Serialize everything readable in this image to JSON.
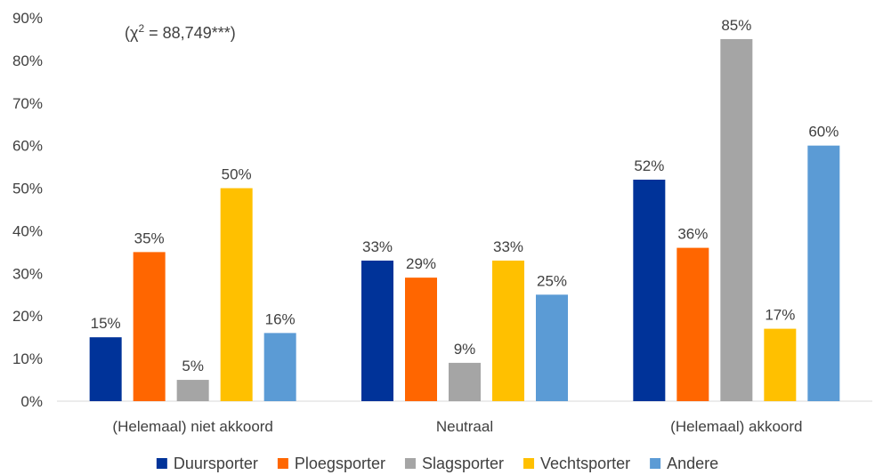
{
  "chart_data": {
    "type": "bar",
    "categories": [
      "(Helemaal) niet akkoord",
      "Neutraal",
      "(Helemaal) akkoord"
    ],
    "series": [
      {
        "name": "Duursporter",
        "color": "#003399",
        "values": [
          15,
          33,
          52
        ]
      },
      {
        "name": "Ploegsporter",
        "color": "#ff6600",
        "values": [
          35,
          29,
          36
        ]
      },
      {
        "name": "Slagsporter",
        "color": "#a5a5a5",
        "values": [
          5,
          9,
          85
        ]
      },
      {
        "name": "Vechtsporter",
        "color": "#ffc000",
        "values": [
          50,
          33,
          17
        ]
      },
      {
        "name": "Andere",
        "color": "#5b9bd5",
        "values": [
          16,
          25,
          60
        ]
      }
    ],
    "ylim": [
      0,
      90
    ],
    "yticks": [
      "0%",
      "10%",
      "20%",
      "30%",
      "40%",
      "50%",
      "60%",
      "70%",
      "80%",
      "90%"
    ],
    "value_suffix": "%",
    "annotation": {
      "prefix": "(χ",
      "sup": "2",
      "suffix": " = 88,749***)"
    },
    "legend_position": "bottom",
    "grid": false
  }
}
